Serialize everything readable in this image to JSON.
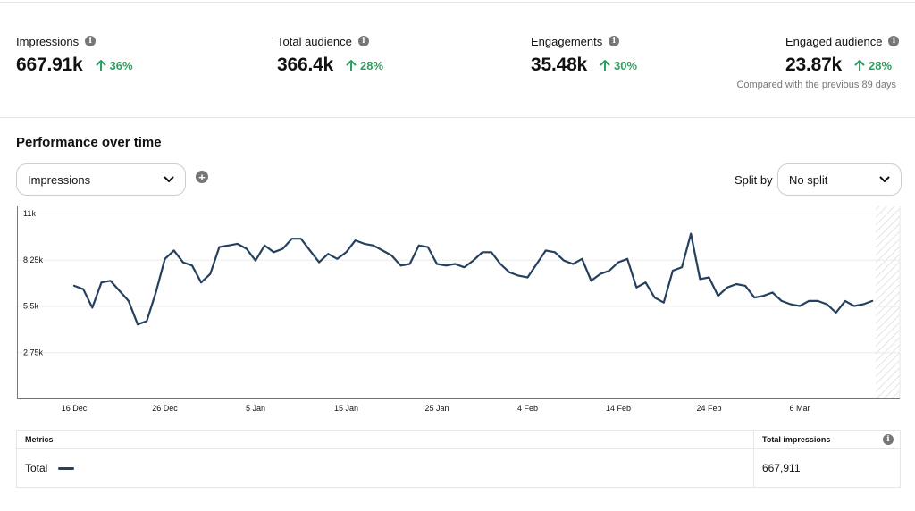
{
  "stats": [
    {
      "label": "Impressions",
      "value": "667.91k",
      "delta": "36%"
    },
    {
      "label": "Total audience",
      "value": "366.4k",
      "delta": "28%"
    },
    {
      "label": "Engagements",
      "value": "35.48k",
      "delta": "30%"
    },
    {
      "label": "Engaged audience",
      "value": "23.87k",
      "delta": "28%"
    }
  ],
  "comparison_note": "Compared with the previous 89 days",
  "performance": {
    "title": "Performance over time",
    "metric_select": "Impressions",
    "split_label": "Split by",
    "split_select": "No split"
  },
  "colors": {
    "line": "#25405e",
    "positive": "#2f9e5f",
    "icon_gray": "#767676"
  },
  "icons": {
    "info": "info-icon",
    "add": "add-metric-icon",
    "chevron": "chevron-down-icon",
    "up": "arrow-up-icon"
  },
  "chart_data": {
    "type": "line",
    "y_ticks": [
      "11k",
      "8.25k",
      "5.5k",
      "2.75k"
    ],
    "y_tick_values": [
      11000,
      8250,
      5500,
      2750
    ],
    "ylim": [
      0,
      11000
    ],
    "x_tick_labels": [
      "16 Dec",
      "26 Dec",
      "5 Jan",
      "15 Jan",
      "25 Jan",
      "4 Feb",
      "14 Feb",
      "24 Feb",
      "6 Mar"
    ],
    "x_tick_day_index": [
      0,
      10,
      20,
      30,
      40,
      50,
      60,
      70,
      80
    ],
    "grid": true,
    "series": [
      {
        "values": [
          6700,
          6500,
          5400,
          6900,
          7000,
          6400,
          5800,
          4400,
          4600,
          6300,
          8300,
          8800,
          8100,
          7900,
          6900,
          7400,
          9000,
          9100,
          9200,
          8900,
          8200,
          9100,
          8700,
          8900,
          9500,
          9500,
          8800,
          8100,
          8600,
          8300,
          8700,
          9400,
          9200,
          9100,
          8800,
          8500,
          7900,
          8000,
          9100,
          9000,
          8000,
          7900,
          8000,
          7800,
          8200,
          8700,
          8700,
          8000,
          7500,
          7300,
          7200,
          8000,
          8800,
          8700,
          8200,
          8000,
          8300,
          7000,
          7400,
          7600,
          8100,
          8300,
          6600,
          6900,
          6000,
          5700,
          7600,
          7800,
          9800,
          7100,
          7200,
          6100,
          6600,
          6800,
          6700,
          6000,
          6100,
          6300,
          5800,
          5600,
          5500,
          5800,
          5800,
          5600,
          5100,
          5800,
          5500,
          5600,
          5800
        ]
      }
    ]
  },
  "metrics_table": {
    "col_metric": "Metrics",
    "col_total": "Total impressions",
    "row_label": "Total",
    "row_value": "667,911"
  }
}
